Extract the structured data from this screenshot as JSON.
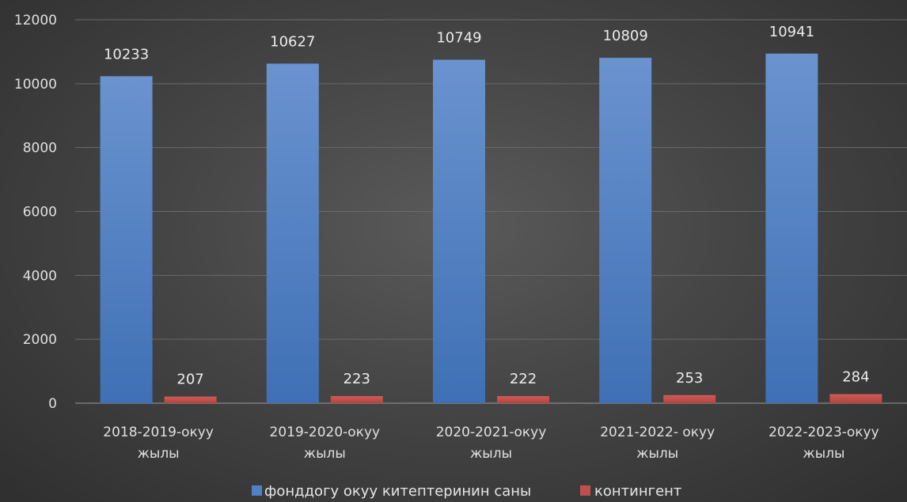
{
  "chart_data": {
    "type": "bar",
    "categories": [
      [
        "2018-2019-окуу",
        "жылы"
      ],
      [
        "2019-2020-окуу",
        "жылы"
      ],
      [
        "2020-2021-окуу",
        "жылы"
      ],
      [
        "2021-2022- окуу",
        "жылы"
      ],
      [
        "2022-2023-окуу",
        "жылы"
      ]
    ],
    "series": [
      {
        "name": "фонддогу окуу китептеринин саны",
        "color": "#4f81c7",
        "values": [
          10233,
          10627,
          10749,
          10809,
          10941
        ]
      },
      {
        "name": "контингент",
        "color": "#c0504d",
        "values": [
          207,
          223,
          222,
          253,
          284
        ]
      }
    ],
    "yticks": [
      0,
      2000,
      4000,
      6000,
      8000,
      10000,
      12000
    ],
    "ylim": [
      0,
      12000
    ],
    "grid": true,
    "legend_position": "bottom",
    "title": "",
    "xlabel": "",
    "ylabel": ""
  }
}
